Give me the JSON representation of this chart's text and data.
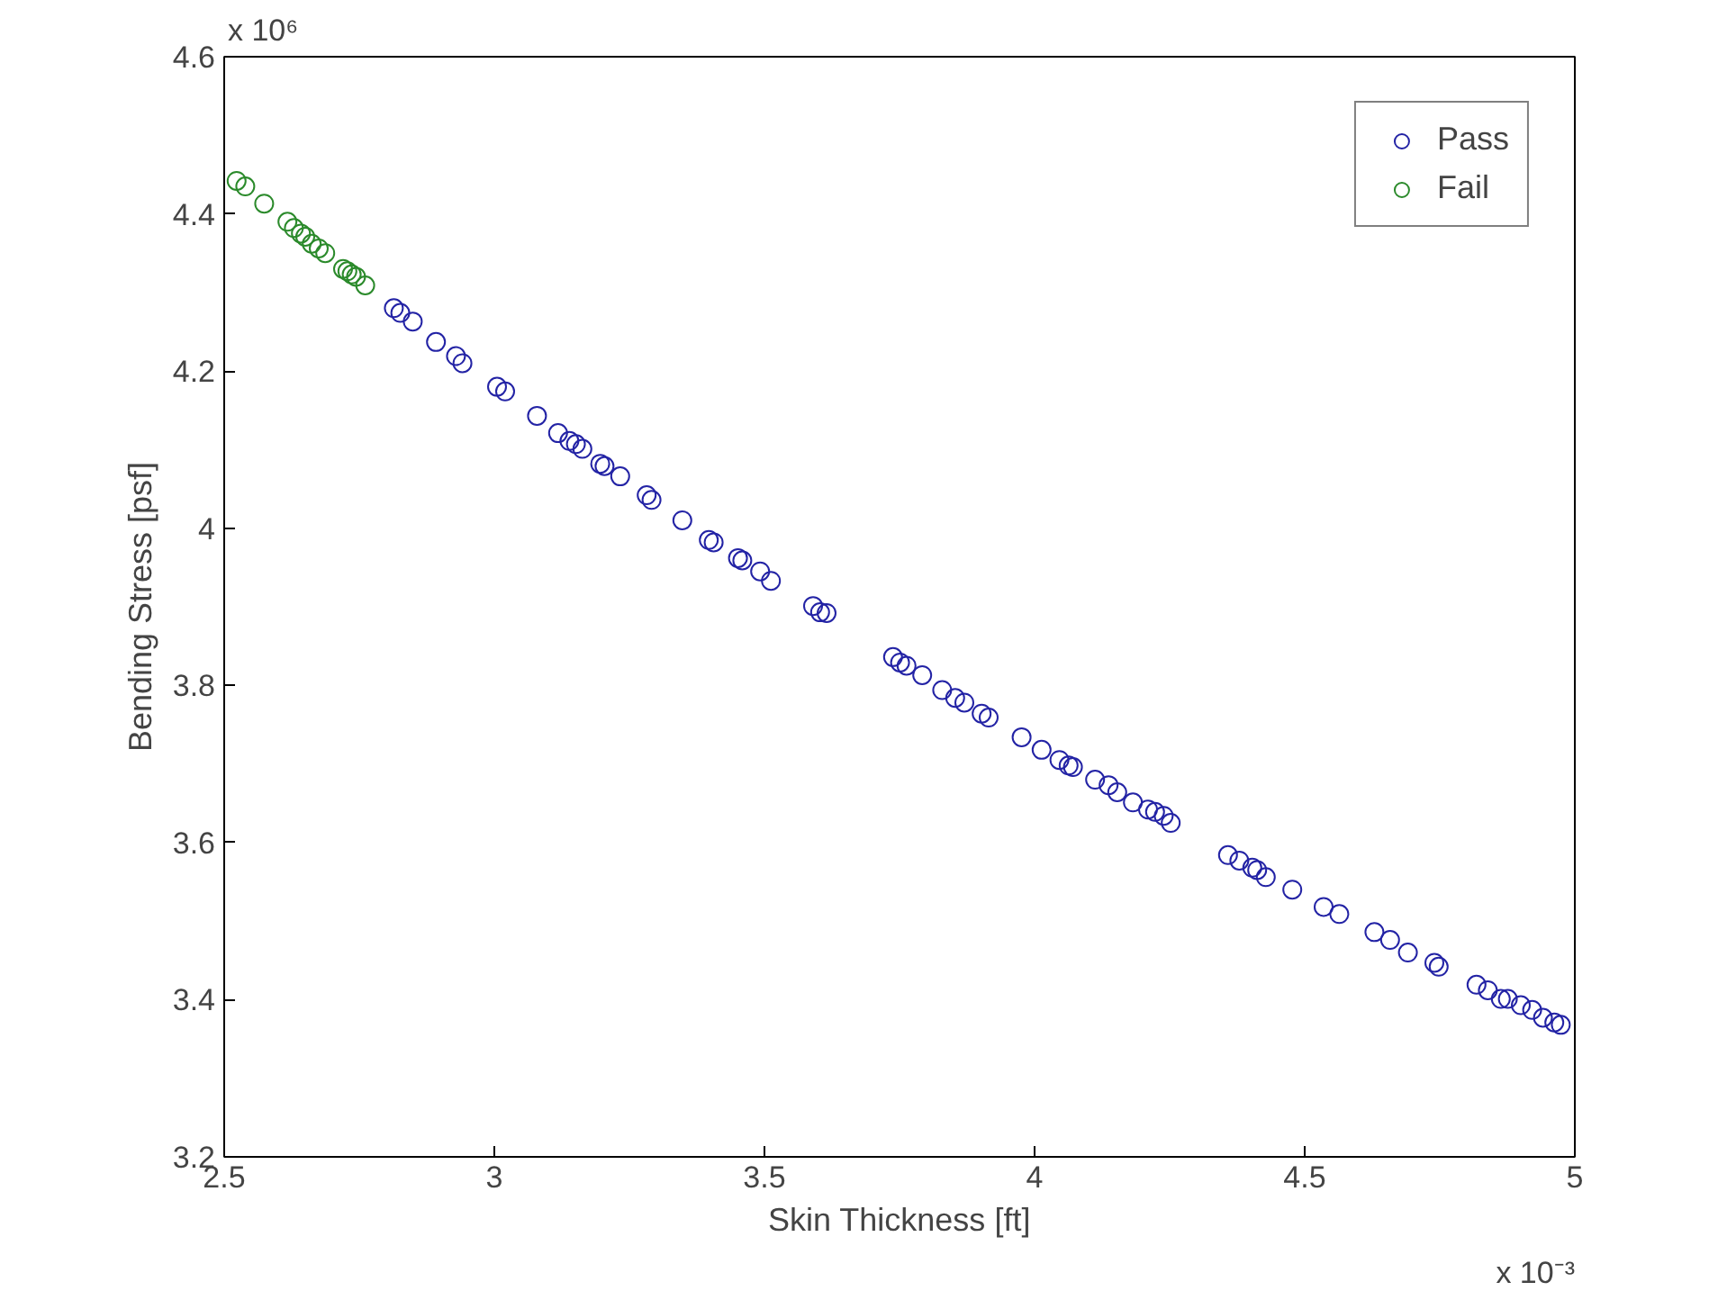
{
  "chart_data": {
    "type": "scatter",
    "xlabel": "Skin Thickness [ft]",
    "ylabel": "Bending Stress [psf]",
    "annotations": [
      "x 10⁶",
      "x 10⁻³"
    ],
    "xlim": [
      2.5,
      5
    ],
    "ylim": [
      3.2,
      4.6
    ],
    "xticks": [
      2.5,
      3,
      3.5,
      4,
      4.5,
      5
    ],
    "yticks": [
      3.2,
      3.4,
      3.6,
      3.8,
      4,
      4.2,
      4.4,
      4.6
    ],
    "grid": false,
    "legend": "top right",
    "marker": "circle",
    "series": [
      {
        "name": "Pass",
        "color": "#2323a5",
        "x": [
          2.814,
          2.826,
          2.849,
          2.892,
          2.929,
          2.941,
          3.005,
          3.02,
          3.079,
          3.118,
          3.139,
          3.151,
          3.163,
          3.196,
          3.204,
          3.233,
          3.282,
          3.291,
          3.348,
          3.397,
          3.406,
          3.451,
          3.459,
          3.492,
          3.512,
          3.59,
          3.603,
          3.615,
          3.738,
          3.751,
          3.763,
          3.792,
          3.829,
          3.853,
          3.87,
          3.902,
          3.915,
          3.976,
          4.013,
          4.046,
          4.063,
          4.071,
          4.112,
          4.137,
          4.153,
          4.182,
          4.21,
          4.223,
          4.239,
          4.252,
          4.358,
          4.379,
          4.403,
          4.412,
          4.428,
          4.477,
          4.535,
          4.564,
          4.629,
          4.658,
          4.691,
          4.74,
          4.748,
          4.818,
          4.839,
          4.863,
          4.876,
          4.9,
          4.921,
          4.941,
          4.962,
          4.974
        ],
        "values": [
          4.28,
          4.274,
          4.263,
          4.237,
          4.219,
          4.21,
          4.18,
          4.174,
          4.143,
          4.121,
          4.111,
          4.107,
          4.101,
          4.082,
          4.079,
          4.066,
          4.042,
          4.036,
          4.01,
          3.985,
          3.982,
          3.962,
          3.959,
          3.945,
          3.933,
          3.901,
          3.893,
          3.892,
          3.836,
          3.829,
          3.825,
          3.813,
          3.794,
          3.784,
          3.778,
          3.764,
          3.759,
          3.734,
          3.718,
          3.705,
          3.698,
          3.696,
          3.68,
          3.673,
          3.664,
          3.651,
          3.642,
          3.639,
          3.634,
          3.625,
          3.584,
          3.577,
          3.568,
          3.565,
          3.556,
          3.54,
          3.518,
          3.509,
          3.486,
          3.476,
          3.46,
          3.447,
          3.442,
          3.419,
          3.412,
          3.401,
          3.401,
          3.393,
          3.387,
          3.377,
          3.371,
          3.368
        ]
      },
      {
        "name": "Fail",
        "color": "#2b8a2b",
        "x": [
          2.523,
          2.539,
          2.574,
          2.617,
          2.629,
          2.642,
          2.65,
          2.662,
          2.675,
          2.687,
          2.72,
          2.728,
          2.736,
          2.744,
          2.761
        ],
        "values": [
          4.442,
          4.435,
          4.413,
          4.39,
          4.382,
          4.375,
          4.371,
          4.362,
          4.356,
          4.35,
          4.33,
          4.327,
          4.323,
          4.32,
          4.309
        ]
      }
    ]
  }
}
